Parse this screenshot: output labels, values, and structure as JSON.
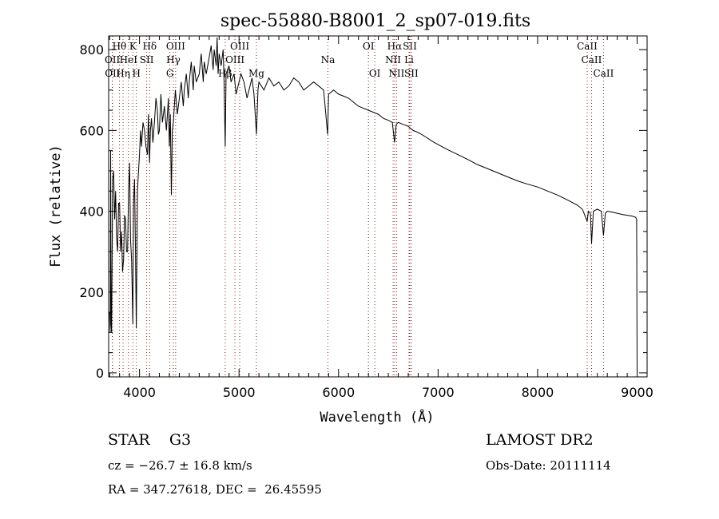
{
  "chart_data": {
    "type": "line",
    "title": "spec-55880-B8001_2_sp07-019.fits",
    "xlabel": "Wavelength (Å)",
    "ylabel": "Flux (relative)",
    "xlim": [
      3690,
      9100
    ],
    "ylim": [
      -10,
      834
    ],
    "x_ticks": [
      4000,
      5000,
      6000,
      7000,
      8000,
      9000
    ],
    "y_ticks": [
      0,
      200,
      400,
      600,
      800
    ],
    "grid": false,
    "series": [
      {
        "name": "spectrum",
        "points": [
          [
            3700,
            150
          ],
          [
            3705,
            100
          ],
          [
            3710,
            550
          ],
          [
            3715,
            120
          ],
          [
            3720,
            100
          ],
          [
            3730,
            480
          ],
          [
            3740,
            500
          ],
          [
            3750,
            380
          ],
          [
            3760,
            450
          ],
          [
            3770,
            330
          ],
          [
            3780,
            300
          ],
          [
            3790,
            420
          ],
          [
            3800,
            420
          ],
          [
            3810,
            300
          ],
          [
            3820,
            350
          ],
          [
            3830,
            250
          ],
          [
            3840,
            280
          ],
          [
            3850,
            390
          ],
          [
            3860,
            380
          ],
          [
            3870,
            300
          ],
          [
            3880,
            300
          ],
          [
            3890,
            450
          ],
          [
            3900,
            520
          ],
          [
            3910,
            330
          ],
          [
            3920,
            280
          ],
          [
            3933,
            120
          ],
          [
            3940,
            420
          ],
          [
            3950,
            480
          ],
          [
            3960,
            300
          ],
          [
            3968,
            110
          ],
          [
            3980,
            450
          ],
          [
            3990,
            500
          ],
          [
            4000,
            540
          ],
          [
            4010,
            600
          ],
          [
            4020,
            560
          ],
          [
            4035,
            620
          ],
          [
            4050,
            600
          ],
          [
            4065,
            560
          ],
          [
            4080,
            540
          ],
          [
            4090,
            640
          ],
          [
            4101,
            520
          ],
          [
            4110,
            600
          ],
          [
            4120,
            630
          ],
          [
            4135,
            570
          ],
          [
            4150,
            620
          ],
          [
            4165,
            680
          ],
          [
            4180,
            650
          ],
          [
            4190,
            590
          ],
          [
            4200,
            600
          ],
          [
            4215,
            690
          ],
          [
            4230,
            620
          ],
          [
            4250,
            660
          ],
          [
            4270,
            600
          ],
          [
            4290,
            680
          ],
          [
            4300,
            560
          ],
          [
            4310,
            640
          ],
          [
            4320,
            440
          ],
          [
            4330,
            600
          ],
          [
            4340,
            620
          ],
          [
            4360,
            700
          ],
          [
            4380,
            640
          ],
          [
            4400,
            680
          ],
          [
            4420,
            720
          ],
          [
            4440,
            660
          ],
          [
            4450,
            700
          ],
          [
            4470,
            740
          ],
          [
            4490,
            680
          ],
          [
            4500,
            720
          ],
          [
            4520,
            770
          ],
          [
            4540,
            700
          ],
          [
            4550,
            760
          ],
          [
            4570,
            720
          ],
          [
            4600,
            740
          ],
          [
            4620,
            790
          ],
          [
            4640,
            720
          ],
          [
            4650,
            770
          ],
          [
            4670,
            740
          ],
          [
            4700,
            780
          ],
          [
            4720,
            810
          ],
          [
            4740,
            750
          ],
          [
            4750,
            800
          ],
          [
            4770,
            760
          ],
          [
            4780,
            830
          ],
          [
            4790,
            740
          ],
          [
            4800,
            790
          ],
          [
            4820,
            760
          ],
          [
            4840,
            800
          ],
          [
            4850,
            720
          ],
          [
            4861,
            560
          ],
          [
            4870,
            740
          ],
          [
            4900,
            760
          ],
          [
            4920,
            720
          ],
          [
            4950,
            740
          ],
          [
            4970,
            690
          ],
          [
            5000,
            720
          ],
          [
            5020,
            740
          ],
          [
            5050,
            720
          ],
          [
            5080,
            680
          ],
          [
            5100,
            700
          ],
          [
            5130,
            730
          ],
          [
            5150,
            690
          ],
          [
            5175,
            590
          ],
          [
            5190,
            700
          ],
          [
            5200,
            720
          ],
          [
            5250,
            700
          ],
          [
            5300,
            730
          ],
          [
            5350,
            710
          ],
          [
            5400,
            720
          ],
          [
            5450,
            700
          ],
          [
            5500,
            710
          ],
          [
            5550,
            730
          ],
          [
            5600,
            720
          ],
          [
            5650,
            700
          ],
          [
            5700,
            710
          ],
          [
            5750,
            720
          ],
          [
            5800,
            710
          ],
          [
            5850,
            700
          ],
          [
            5890,
            590
          ],
          [
            5900,
            690
          ],
          [
            5950,
            700
          ],
          [
            6000,
            690
          ],
          [
            6050,
            685
          ],
          [
            6100,
            680
          ],
          [
            6150,
            670
          ],
          [
            6200,
            660
          ],
          [
            6250,
            655
          ],
          [
            6300,
            650
          ],
          [
            6350,
            645
          ],
          [
            6400,
            640
          ],
          [
            6450,
            630
          ],
          [
            6500,
            625
          ],
          [
            6540,
            620
          ],
          [
            6563,
            570
          ],
          [
            6580,
            615
          ],
          [
            6600,
            620
          ],
          [
            6650,
            615
          ],
          [
            6700,
            610
          ],
          [
            6750,
            600
          ],
          [
            6800,
            595
          ],
          [
            6850,
            588
          ],
          [
            6900,
            580
          ],
          [
            6950,
            572
          ],
          [
            7000,
            565
          ],
          [
            7100,
            552
          ],
          [
            7200,
            540
          ],
          [
            7300,
            528
          ],
          [
            7400,
            515
          ],
          [
            7500,
            505
          ],
          [
            7600,
            495
          ],
          [
            7700,
            485
          ],
          [
            7800,
            475
          ],
          [
            7900,
            467
          ],
          [
            8000,
            460
          ],
          [
            8100,
            450
          ],
          [
            8200,
            440
          ],
          [
            8300,
            428
          ],
          [
            8400,
            415
          ],
          [
            8450,
            405
          ],
          [
            8498,
            375
          ],
          [
            8510,
            400
          ],
          [
            8530,
            395
          ],
          [
            8542,
            320
          ],
          [
            8560,
            400
          ],
          [
            8600,
            405
          ],
          [
            8640,
            400
          ],
          [
            8662,
            340
          ],
          [
            8680,
            395
          ],
          [
            8700,
            400
          ],
          [
            8750,
            398
          ],
          [
            8800,
            395
          ],
          [
            8850,
            392
          ],
          [
            8900,
            390
          ],
          [
            8950,
            388
          ],
          [
            8985,
            385
          ],
          [
            8995,
            380
          ],
          [
            9000,
            0
          ]
        ]
      }
    ],
    "line_markers": [
      {
        "label": "Hθ",
        "wavelength": 3798,
        "row": 1
      },
      {
        "label": "K",
        "wavelength": 3934,
        "row": 1
      },
      {
        "label": "Hδ",
        "wavelength": 4102,
        "row": 1
      },
      {
        "label": "OIII",
        "wavelength": 4363,
        "row": 1
      },
      {
        "label": "OIII",
        "wavelength": 5007,
        "row": 1
      },
      {
        "label": "OI",
        "wavelength": 6300,
        "row": 1
      },
      {
        "label": "Hα",
        "wavelength": 6563,
        "row": 1
      },
      {
        "label": "SII",
        "wavelength": 6716,
        "row": 1
      },
      {
        "label": "CaII",
        "wavelength": 8498,
        "row": 1
      },
      {
        "label": "OII",
        "wavelength": 3727,
        "row": 2
      },
      {
        "label": "HeI",
        "wavelength": 3889,
        "row": 2
      },
      {
        "label": "SII",
        "wavelength": 4072,
        "row": 2
      },
      {
        "label": "Hγ",
        "wavelength": 4340,
        "row": 2
      },
      {
        "label": "OIII",
        "wavelength": 4959,
        "row": 2
      },
      {
        "label": "Na",
        "wavelength": 5893,
        "row": 2
      },
      {
        "label": "NII",
        "wavelength": 6548,
        "row": 2
      },
      {
        "label": "Li",
        "wavelength": 6708,
        "row": 2
      },
      {
        "label": "CaII",
        "wavelength": 8542,
        "row": 2
      },
      {
        "label": "OII",
        "wavelength": 3729,
        "row": 3
      },
      {
        "label": "Hη",
        "wavelength": 3835,
        "row": 3
      },
      {
        "label": "H",
        "wavelength": 3969,
        "row": 3
      },
      {
        "label": "G",
        "wavelength": 4305,
        "row": 3
      },
      {
        "label": "Hβ",
        "wavelength": 4861,
        "row": 3
      },
      {
        "label": "Mg",
        "wavelength": 5175,
        "row": 3
      },
      {
        "label": "OI",
        "wavelength": 6364,
        "row": 3
      },
      {
        "label": "NII",
        "wavelength": 6583,
        "row": 3
      },
      {
        "label": "SII",
        "wavelength": 6731,
        "row": 3
      },
      {
        "label": "CaII",
        "wavelength": 8662,
        "row": 3
      }
    ],
    "colors": {
      "line": "#000000",
      "marker": "#8b2020"
    }
  },
  "info": {
    "class_label": "STAR",
    "subclass": "G3",
    "survey": "LAMOST DR2",
    "redshift": "cz = −26.7 ± 16.8 km/s",
    "obs_date": "Obs-Date: 20111114",
    "coords": "RA = 347.27618, DEC =  26.45595"
  }
}
